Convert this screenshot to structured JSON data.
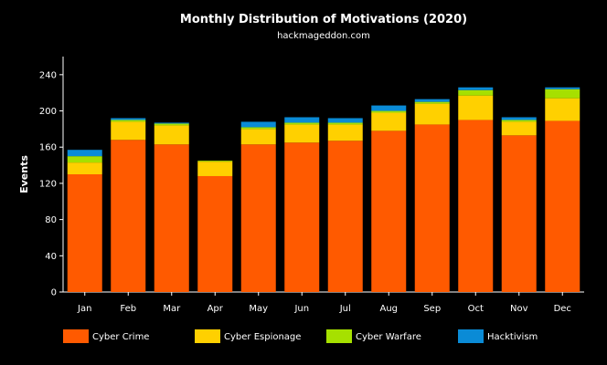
{
  "chart_data": {
    "type": "bar",
    "stacked": true,
    "title": "Monthly Distribution of Motivations (2020)",
    "subtitle": "hackmageddon.com",
    "xlabel": "",
    "ylabel": "Events",
    "ylim": [
      0,
      260
    ],
    "yticks": [
      0,
      40,
      80,
      120,
      160,
      200,
      240
    ],
    "categories": [
      "Jan",
      "Feb",
      "Mar",
      "Apr",
      "May",
      "Jun",
      "Jul",
      "Aug",
      "Sep",
      "Oct",
      "Nov",
      "Dec"
    ],
    "series": [
      {
        "name": "Cyber Crime",
        "color": "#ff5a00",
        "values": [
          130,
          168,
          163,
          128,
          163,
          165,
          167,
          178,
          185,
          190,
          173,
          189
        ]
      },
      {
        "name": "Cyber Espionage",
        "color": "#ffd000",
        "values": [
          13,
          20,
          21,
          16,
          17,
          20,
          18,
          20,
          23,
          27,
          15,
          25
        ]
      },
      {
        "name": "Cyber Warfare",
        "color": "#a6e000",
        "values": [
          7,
          2,
          2,
          1,
          2,
          2,
          2,
          2,
          2,
          6,
          2,
          10
        ]
      },
      {
        "name": "Hacktivism",
        "color": "#0a8bd6",
        "values": [
          7,
          2,
          1,
          0,
          6,
          6,
          5,
          6,
          3,
          3,
          3,
          2
        ]
      }
    ]
  }
}
